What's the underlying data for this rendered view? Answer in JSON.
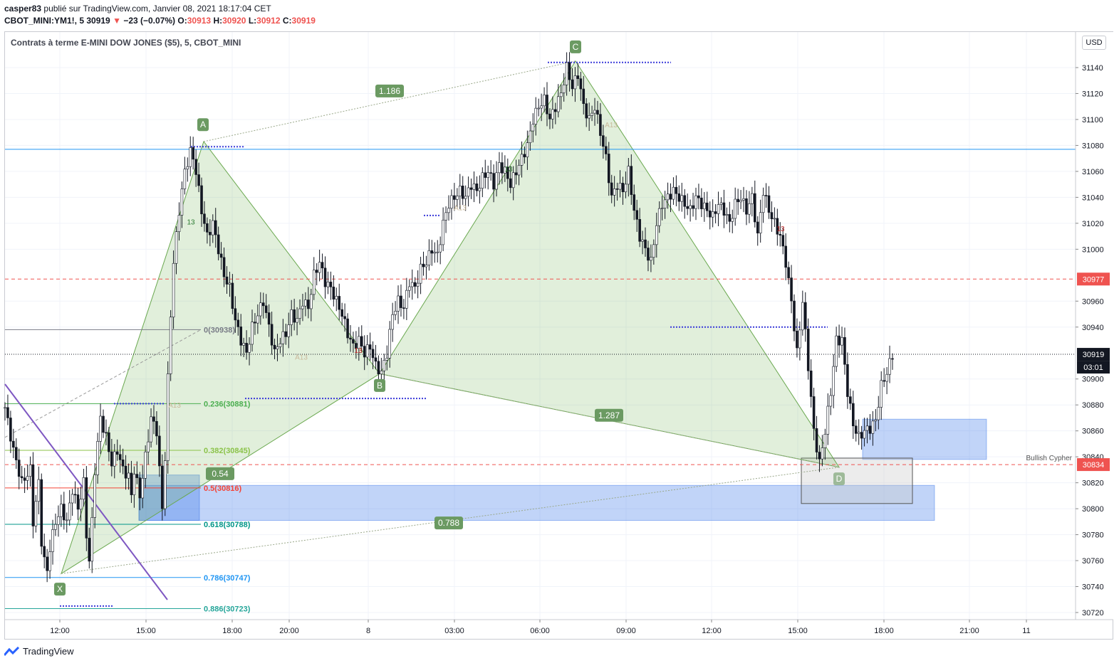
{
  "header": {
    "user": "casper83",
    "published": "publié sur TradingView.com, Janvier 08, 2021 18:17:04 CET",
    "symbol": "CBOT_MINI:YM1!, 5",
    "last": "30919",
    "change": "−23 (−0.07%)",
    "o_label": "O:",
    "o": "30913",
    "h_label": "H:",
    "h": "30920",
    "l_label": "L:",
    "l": "30912",
    "c_label": "C:",
    "c": "30919"
  },
  "chart_title": "Contrats à terme E-MINI DOW JONES ($5), 5, CBOT_MINI",
  "currency_button": "USD",
  "footer_brand": "TradingView",
  "chart_data": {
    "type": "candlestick",
    "y_axis": {
      "range": [
        30710,
        31160
      ],
      "ticks": [
        31140,
        31120,
        31100,
        31080,
        31060,
        31040,
        31020,
        31000,
        30960,
        30940,
        30900,
        30880,
        30860,
        30840,
        30820,
        30800,
        30780,
        30760,
        30740,
        30720
      ],
      "price_labels": [
        {
          "value": 30977,
          "text": "30977",
          "color": "#ef5350"
        },
        {
          "value": 30919,
          "text": "30919",
          "color": "#131722"
        },
        {
          "value": 30912,
          "text": "03:01",
          "color": "#131722"
        },
        {
          "value": 30834,
          "text": "30834",
          "color": "#ef5350"
        }
      ]
    },
    "x_axis": {
      "ticks": [
        "12:00",
        "15:00",
        "18:00",
        "20:00",
        "8",
        "03:00",
        "06:00",
        "09:00",
        "12:00",
        "15:00",
        "18:00",
        "21:00",
        "11"
      ]
    },
    "pattern": {
      "name": "Bullish Cypher",
      "points": [
        {
          "label": "X",
          "value": 30750
        },
        {
          "label": "A",
          "value": 31083
        },
        {
          "label": "B",
          "value": 30904
        },
        {
          "label": "C",
          "value": 31145
        },
        {
          "label": "D",
          "value": 30832
        }
      ],
      "ratios": [
        "1.186",
        "0.54",
        "1.287",
        "0.788"
      ]
    },
    "fib_levels": [
      {
        "label": "0(30938)",
        "value": 30938,
        "color": "#787b86"
      },
      {
        "label": "0.236(30881)",
        "value": 30881,
        "color": "#4caf50"
      },
      {
        "label": "0.382(30845)",
        "value": 30845,
        "color": "#8bc34a"
      },
      {
        "label": "0.5(30816)",
        "value": 30816,
        "color": "#f44336"
      },
      {
        "label": "0.618(30788)",
        "value": 30788,
        "color": "#009688"
      },
      {
        "label": "0.786(30747)",
        "value": 30747,
        "color": "#2196f3"
      },
      {
        "label": "0.886(30723)",
        "value": 30723,
        "color": "#26a69a"
      }
    ],
    "horizontal_lines": [
      {
        "value": 31077,
        "color": "#2196f3",
        "style": "solid"
      },
      {
        "value": 30977,
        "color": "#ef5350",
        "style": "dashed"
      },
      {
        "value": 30834,
        "color": "#ef5350",
        "style": "dashed"
      },
      {
        "value": 30919,
        "color": "#131722",
        "style": "dotted"
      }
    ],
    "annotations": [
      "A13",
      "A13",
      "A13",
      "A13",
      "13",
      "13",
      "13",
      "13"
    ],
    "price_path": [
      [
        0,
        30878
      ],
      [
        3,
        30845
      ],
      [
        6,
        30820
      ],
      [
        9,
        30830
      ],
      [
        10,
        30790
      ],
      [
        12,
        30820
      ],
      [
        13,
        30775
      ],
      [
        14,
        30760
      ],
      [
        15,
        30752
      ],
      [
        16,
        30770
      ],
      [
        18,
        30790
      ],
      [
        20,
        30800
      ],
      [
        22,
        30790
      ],
      [
        24,
        30815
      ],
      [
        26,
        30800
      ],
      [
        28,
        30820
      ],
      [
        29,
        30780
      ],
      [
        30,
        30760
      ],
      [
        31,
        30790
      ],
      [
        32,
        30830
      ],
      [
        34,
        30870
      ],
      [
        36,
        30855
      ],
      [
        38,
        30835
      ],
      [
        40,
        30845
      ],
      [
        42,
        30830
      ],
      [
        44,
        30825
      ],
      [
        45,
        30810
      ],
      [
        46,
        30830
      ],
      [
        48,
        30810
      ],
      [
        50,
        30840
      ],
      [
        52,
        30870
      ],
      [
        54,
        30860
      ],
      [
        55,
        30830
      ],
      [
        56,
        30800
      ],
      [
        57,
        30840
      ],
      [
        58,
        30900
      ],
      [
        59,
        30950
      ],
      [
        60,
        30990
      ],
      [
        62,
        31030
      ],
      [
        64,
        31060
      ],
      [
        66,
        31075
      ],
      [
        67,
        31070
      ],
      [
        68,
        31060
      ],
      [
        70,
        31030
      ],
      [
        72,
        31010
      ],
      [
        74,
        31020
      ],
      [
        76,
        31000
      ],
      [
        78,
        30980
      ],
      [
        80,
        30970
      ],
      [
        82,
        30945
      ],
      [
        84,
        30930
      ],
      [
        86,
        30920
      ],
      [
        88,
        30940
      ],
      [
        90,
        30950
      ],
      [
        92,
        30960
      ],
      [
        94,
        30940
      ],
      [
        96,
        30920
      ],
      [
        98,
        30930
      ],
      [
        100,
        30935
      ],
      [
        102,
        30950
      ],
      [
        104,
        30945
      ],
      [
        106,
        30960
      ],
      [
        108,
        30955
      ],
      [
        110,
        30980
      ],
      [
        112,
        30990
      ],
      [
        114,
        30975
      ],
      [
        116,
        30970
      ],
      [
        118,
        30960
      ],
      [
        120,
        30950
      ],
      [
        122,
        30935
      ],
      [
        124,
        30925
      ],
      [
        126,
        30930
      ],
      [
        128,
        30920
      ],
      [
        130,
        30925
      ],
      [
        132,
        30910
      ],
      [
        134,
        30905
      ],
      [
        136,
        30920
      ],
      [
        138,
        30950
      ],
      [
        140,
        30960
      ],
      [
        142,
        30955
      ],
      [
        144,
        30975
      ],
      [
        146,
        30970
      ],
      [
        148,
        30985
      ],
      [
        150,
        30990
      ],
      [
        152,
        31000
      ],
      [
        154,
        30995
      ],
      [
        156,
        31020
      ],
      [
        158,
        31035
      ],
      [
        160,
        31040
      ],
      [
        162,
        31045
      ],
      [
        164,
        31040
      ],
      [
        166,
        31050
      ],
      [
        168,
        31045
      ],
      [
        170,
        31055
      ],
      [
        172,
        31060
      ],
      [
        174,
        31050
      ],
      [
        176,
        31065
      ],
      [
        178,
        31060
      ],
      [
        180,
        31050
      ],
      [
        182,
        31060
      ],
      [
        184,
        31070
      ],
      [
        186,
        31080
      ],
      [
        188,
        31100
      ],
      [
        190,
        31110
      ],
      [
        192,
        31115
      ],
      [
        194,
        31100
      ],
      [
        196,
        31110
      ],
      [
        198,
        31120
      ],
      [
        200,
        31140
      ],
      [
        202,
        31125
      ],
      [
        204,
        31135
      ],
      [
        206,
        31110
      ],
      [
        208,
        31100
      ],
      [
        210,
        31110
      ],
      [
        212,
        31090
      ],
      [
        214,
        31070
      ],
      [
        216,
        31040
      ],
      [
        218,
        31050
      ],
      [
        220,
        31045
      ],
      [
        222,
        31060
      ],
      [
        224,
        31030
      ],
      [
        226,
        31010
      ],
      [
        228,
        31000
      ],
      [
        230,
        30990
      ],
      [
        232,
        31020
      ],
      [
        234,
        31035
      ],
      [
        236,
        31040
      ],
      [
        238,
        31045
      ],
      [
        240,
        31040
      ],
      [
        242,
        31035
      ],
      [
        244,
        31030
      ],
      [
        246,
        31040
      ],
      [
        248,
        31035
      ],
      [
        250,
        31030
      ],
      [
        252,
        31025
      ],
      [
        254,
        31035
      ],
      [
        256,
        31030
      ],
      [
        258,
        31020
      ],
      [
        260,
        31035
      ],
      [
        262,
        31040
      ],
      [
        264,
        31030
      ],
      [
        266,
        31040
      ],
      [
        268,
        31010
      ],
      [
        270,
        31045
      ],
      [
        272,
        31030
      ],
      [
        274,
        31020
      ],
      [
        276,
        31010
      ],
      [
        278,
        30990
      ],
      [
        280,
        30960
      ],
      [
        282,
        30920
      ],
      [
        284,
        30960
      ],
      [
        286,
        30910
      ],
      [
        288,
        30860
      ],
      [
        290,
        30835
      ],
      [
        292,
        30860
      ],
      [
        294,
        30890
      ],
      [
        296,
        30930
      ],
      [
        298,
        30930
      ],
      [
        300,
        30890
      ],
      [
        302,
        30865
      ],
      [
        304,
        30855
      ],
      [
        306,
        30860
      ],
      [
        308,
        30862
      ],
      [
        310,
        30868
      ],
      [
        312,
        30895
      ],
      [
        314,
        30905
      ],
      [
        316,
        30919
      ]
    ]
  }
}
